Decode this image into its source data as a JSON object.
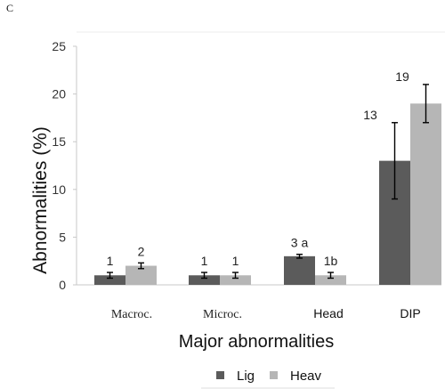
{
  "panel_label": "C",
  "chart_data": {
    "type": "bar",
    "categories": [
      "Macroc.",
      "Microc.",
      "Head",
      "DIP"
    ],
    "series": [
      {
        "name": "Lig",
        "values": [
          1,
          1,
          3,
          13
        ],
        "errors": [
          0.3,
          0.3,
          0.2,
          4
        ],
        "labels": [
          "1",
          "1",
          "3 a",
          "13"
        ]
      },
      {
        "name": "Heav",
        "values": [
          2,
          1,
          1,
          19
        ],
        "errors": [
          0.3,
          0.3,
          0.3,
          2
        ],
        "labels": [
          "2",
          "1",
          "1b",
          "19"
        ]
      }
    ],
    "colors": {
      "Lig": "#5b5b5b",
      "Heav": "#b6b6b6"
    },
    "ylim": [
      0,
      25
    ],
    "yticks": [
      "0",
      "5",
      "10",
      "15",
      "20",
      "25"
    ],
    "xlabel": "Major abnormalities",
    "ylabel": "Abnormalities (%)",
    "legend": {
      "position": "bottom",
      "entries": [
        "Lig",
        "Heav"
      ]
    },
    "grid": false
  }
}
